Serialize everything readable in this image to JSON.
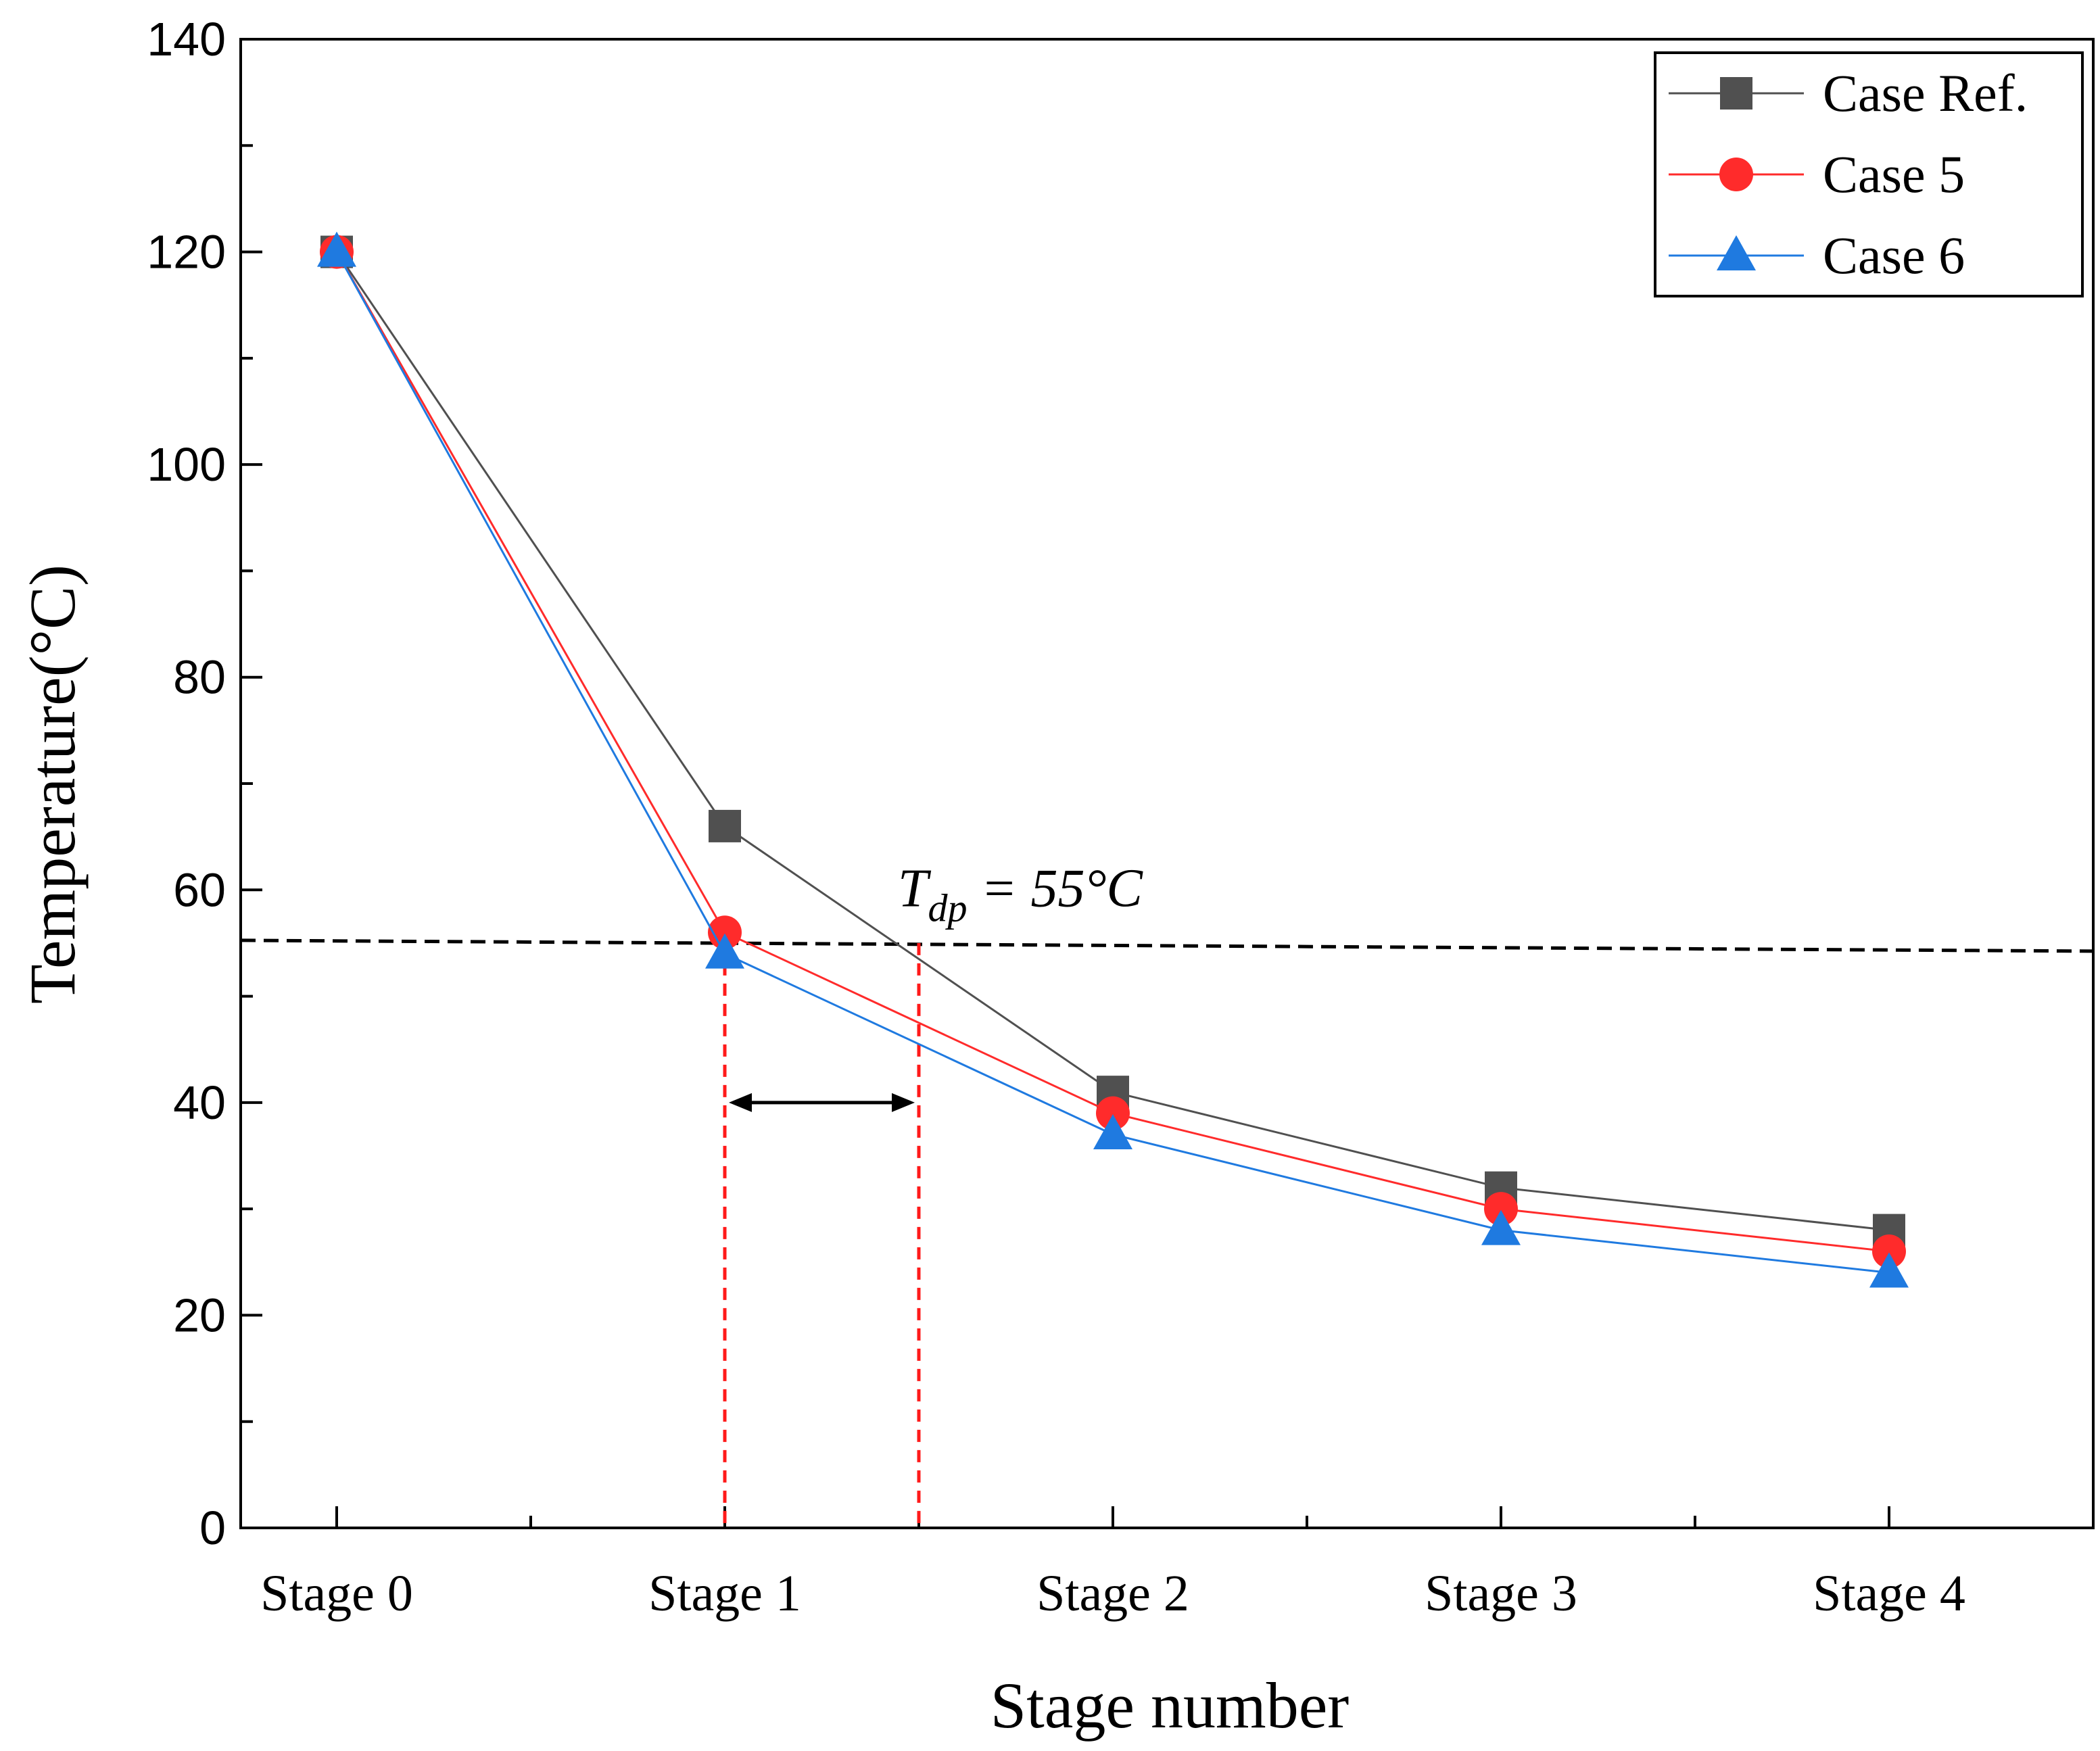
{
  "chart_data": {
    "type": "line",
    "title": "",
    "xlabel": "Stage number",
    "ylabel": "Temperature(°C)",
    "categories": [
      "Stage 0",
      "Stage 1",
      "Stage 2",
      "Stage 3",
      "Stage 4"
    ],
    "ylim": [
      0,
      140
    ],
    "yticks": [
      0,
      20,
      40,
      60,
      80,
      100,
      120,
      140
    ],
    "grid": false,
    "legend_position": "top-right",
    "series": [
      {
        "name": "Case Ref.",
        "color": "#505050",
        "marker": "square",
        "values": [
          120,
          66,
          41,
          32,
          28
        ]
      },
      {
        "name": "Case 5",
        "color": "#ff2b2b",
        "marker": "circle",
        "values": [
          120,
          56,
          39,
          30,
          26
        ]
      },
      {
        "name": "Case 6",
        "color": "#1f7ae0",
        "marker": "triangle",
        "values": [
          120,
          54,
          37,
          28,
          24
        ]
      }
    ],
    "annotations": {
      "dew_point": {
        "value": 55,
        "label_main": "T",
        "label_sub": "dp",
        "label_rest": " = 55°C",
        "line_color": "#000000"
      },
      "marker_lines": {
        "color": "#ff1a1a",
        "x_positions": [
          1.0,
          1.5
        ]
      }
    }
  }
}
